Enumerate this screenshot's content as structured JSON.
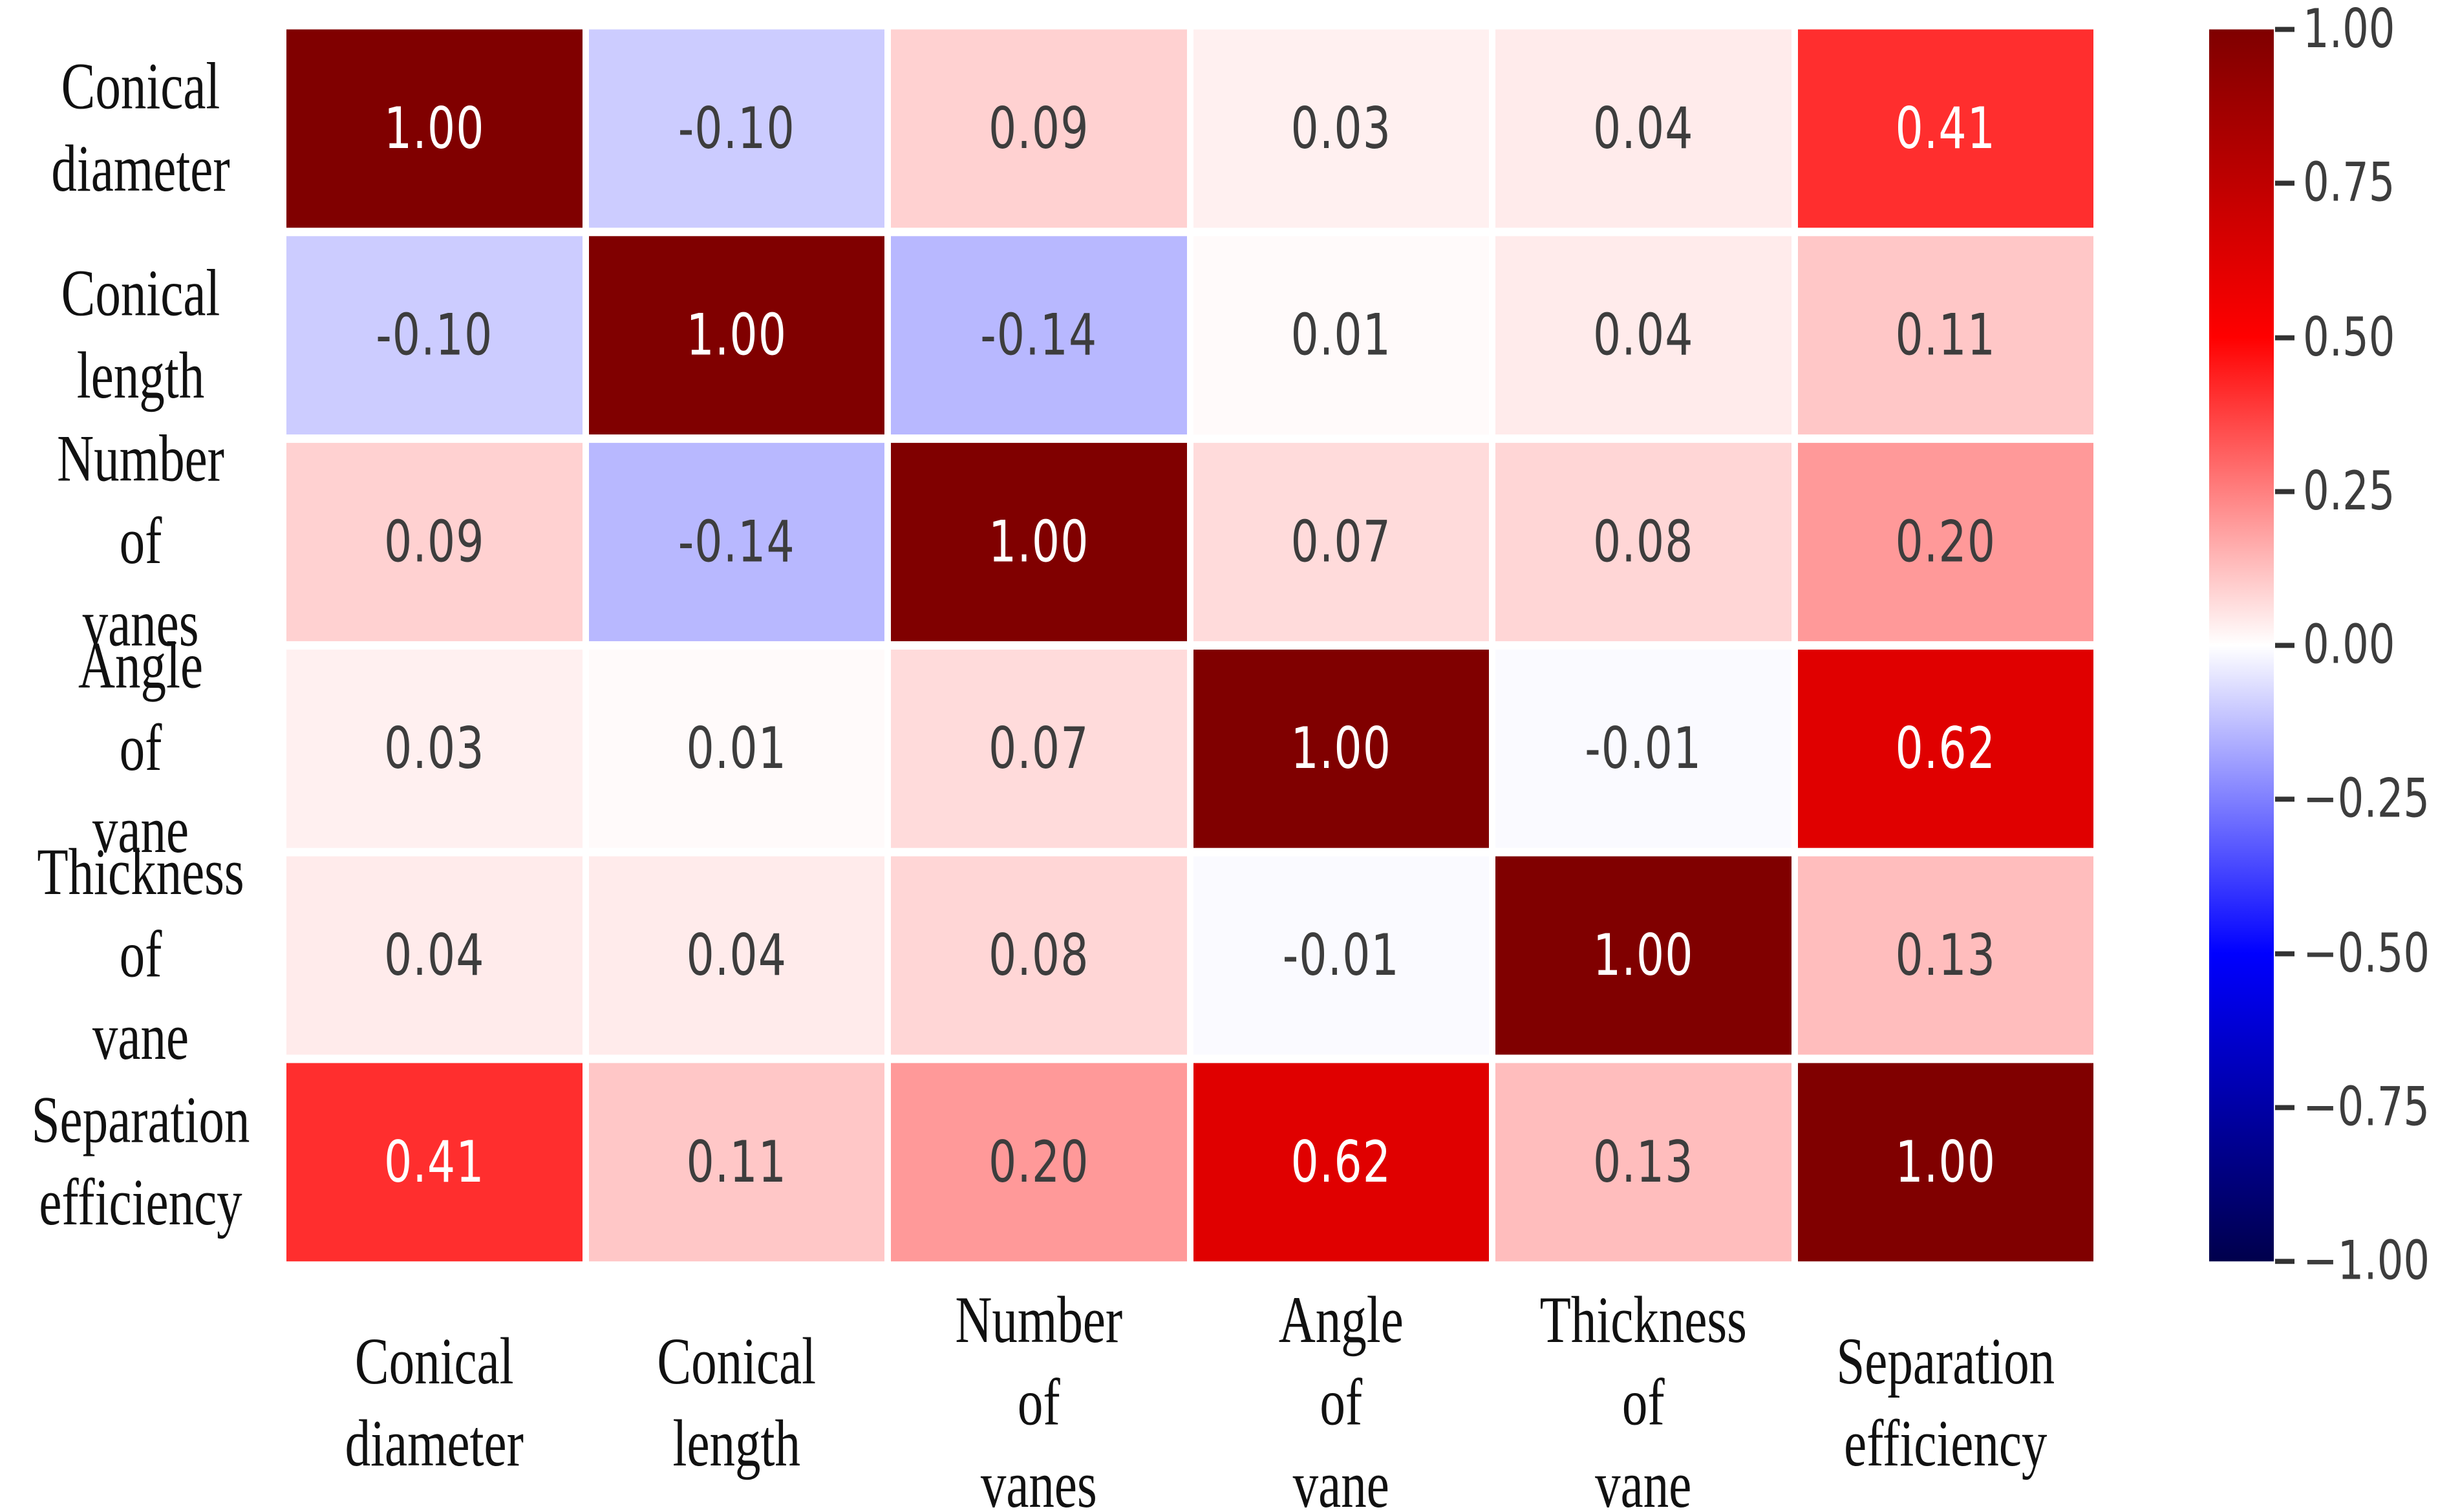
{
  "figure": {
    "background": "#ffffff"
  },
  "chart_data": {
    "type": "heatmap",
    "title": "",
    "xlabel": "",
    "ylabel": "",
    "categories": [
      "Conical diameter",
      "Conical length",
      "Number of vanes",
      "Angle of vane",
      "Thickness of vane",
      "Separation efficiency"
    ],
    "row_label_lines": [
      [
        "Conical",
        "diameter"
      ],
      [
        "Conical",
        "length"
      ],
      [
        "Number",
        "of",
        "vanes"
      ],
      [
        "Angle",
        "of",
        "vane"
      ],
      [
        "Thickness",
        "of",
        "vane"
      ],
      [
        "Separation",
        "efficiency"
      ]
    ],
    "col_label_lines": [
      [
        "Conical",
        "diameter"
      ],
      [
        "Conical",
        "length"
      ],
      [
        "Number",
        "of",
        "vanes"
      ],
      [
        "Angle",
        "of",
        "vane"
      ],
      [
        "Thickness",
        "of",
        "vane"
      ],
      [
        "Separation",
        "efficiency"
      ]
    ],
    "matrix": [
      [
        1.0,
        -0.1,
        0.09,
        0.03,
        0.04,
        0.41
      ],
      [
        -0.1,
        1.0,
        -0.14,
        0.01,
        0.04,
        0.11
      ],
      [
        0.09,
        -0.14,
        1.0,
        0.07,
        0.08,
        0.2
      ],
      [
        0.03,
        0.01,
        0.07,
        1.0,
        -0.01,
        0.62
      ],
      [
        0.04,
        0.04,
        0.08,
        -0.01,
        1.0,
        0.13
      ],
      [
        0.41,
        0.11,
        0.2,
        0.62,
        0.13,
        1.0
      ]
    ],
    "value_format_decimals": 2,
    "grid_gap_color": "#ffffff",
    "annotation_colors": {
      "light": "#ffffff",
      "dark": "#3d3d3d"
    },
    "colorbar": {
      "vmin": -1,
      "vmax": 1,
      "colormap": "seismic",
      "gradient_stops": [
        {
          "pos": 0.0,
          "color": "#7f0000"
        },
        {
          "pos": 0.25,
          "color": "#ff0000"
        },
        {
          "pos": 0.5,
          "color": "#ffffff"
        },
        {
          "pos": 0.75,
          "color": "#0000ff"
        },
        {
          "pos": 1.0,
          "color": "#00004c"
        }
      ],
      "tick_labels": [
        "1.00",
        "0.75",
        "0.50",
        "0.25",
        "0.00",
        "−0.25",
        "−0.50",
        "−0.75",
        "−1.00"
      ],
      "tick_color": "#333333",
      "tick_label_color": "#3d3d3d"
    },
    "legend": null,
    "grid": false
  }
}
